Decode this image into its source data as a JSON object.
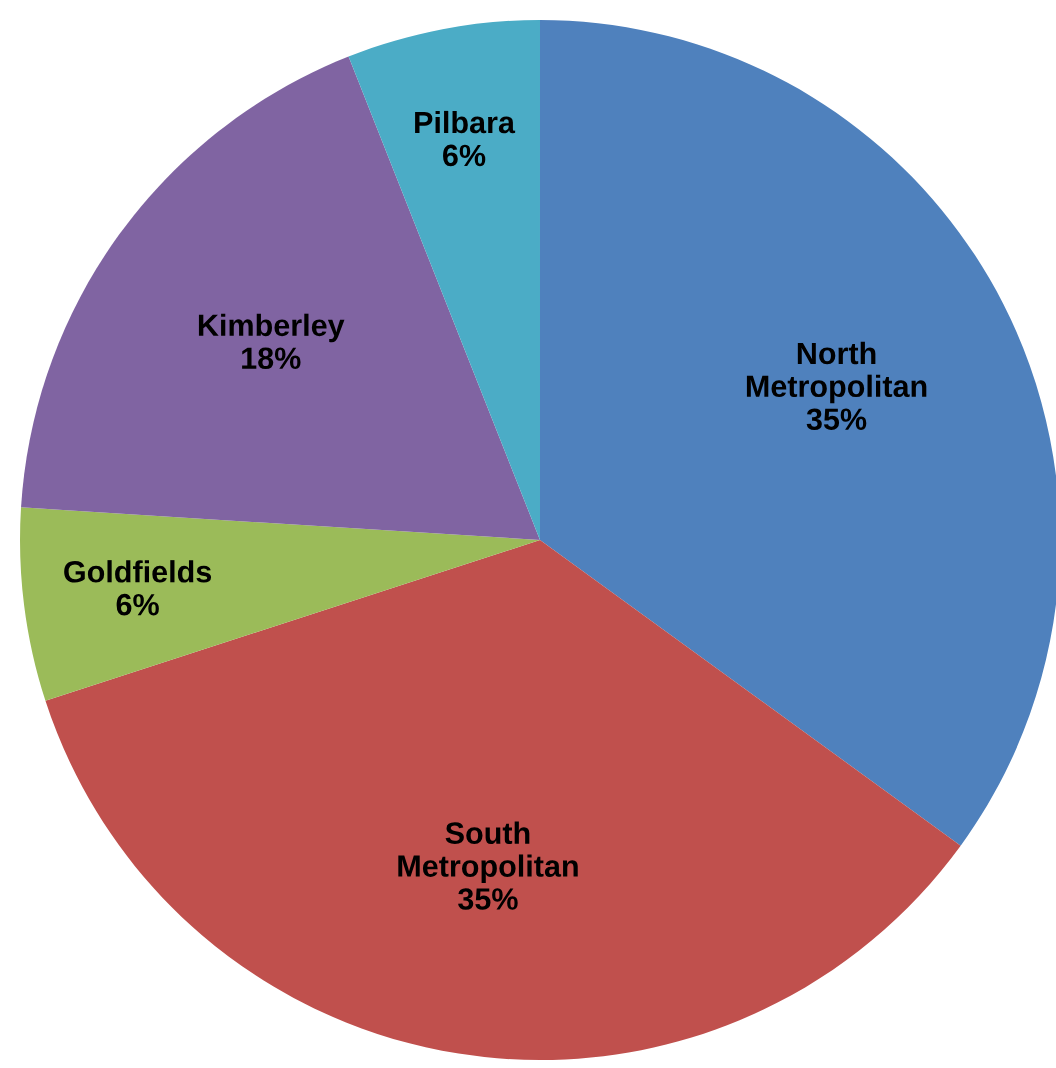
{
  "chart_data": {
    "type": "pie",
    "categories": [
      "North\nMetropolitan",
      "South\nMetropolitan",
      "Goldfields",
      "Kimberley",
      "Pilbara"
    ],
    "values": [
      35,
      35,
      6,
      18,
      6
    ],
    "value_labels": [
      "35%",
      "35%",
      "6%",
      "18%",
      "6%"
    ],
    "colors": [
      "#4f81bd",
      "#c0504d",
      "#9bbb59",
      "#8064a2",
      "#4bacc6"
    ]
  }
}
